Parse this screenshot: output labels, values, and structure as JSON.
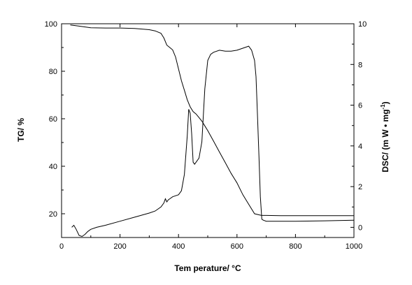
{
  "chart_data": {
    "type": "line",
    "title": "",
    "xlabel": "Tem perature/ °C",
    "ylabel_left": "TG/ %",
    "ylabel_right_main": "DSC/ (m W • mg",
    "ylabel_right_sup": "-1",
    "ylabel_right_close": ")",
    "xlim": [
      0,
      1000
    ],
    "ylim_left": [
      10,
      100
    ],
    "ylim_right": [
      -0.5,
      10
    ],
    "xticks": [
      "0",
      "200",
      "400",
      "600",
      "800",
      "1000"
    ],
    "yticks_left": [
      "20",
      "40",
      "60",
      "80",
      "100"
    ],
    "yticks_right": [
      "0",
      "2",
      "4",
      "6",
      "8",
      "10"
    ],
    "grid": false,
    "series": [
      {
        "axis": "left",
        "x": [
          30,
          60,
          100,
          150,
          200,
          250,
          300,
          320,
          340,
          350,
          360,
          370,
          380,
          390,
          400,
          410,
          420,
          430,
          440,
          450,
          460,
          470,
          480,
          490,
          500,
          520,
          540,
          560,
          580,
          600,
          620,
          640,
          660,
          680,
          685,
          700,
          750,
          800,
          850,
          900,
          950,
          1000
        ],
        "y": [
          99.5,
          99,
          98.3,
          98.2,
          98.2,
          98,
          97.5,
          97,
          96,
          94,
          91,
          90,
          89,
          86,
          81,
          76,
          72,
          68,
          65,
          63,
          62,
          60.5,
          59,
          57,
          55,
          50.5,
          46,
          41.5,
          37,
          33,
          28,
          24,
          20,
          19.4,
          19.3,
          19.3,
          19.2,
          19.2,
          19.2,
          19.2,
          19.2,
          19.2
        ]
      },
      {
        "axis": "right",
        "x": [
          35,
          42,
          50,
          60,
          70,
          80,
          90,
          100,
          120,
          150,
          200,
          250,
          300,
          320,
          340,
          350,
          355,
          360,
          365,
          370,
          380,
          400,
          410,
          420,
          430,
          435,
          440,
          445,
          450,
          455,
          460,
          470,
          480,
          490,
          500,
          510,
          520,
          540,
          560,
          580,
          600,
          620,
          640,
          650,
          660,
          665,
          670,
          675,
          680,
          685,
          690,
          700,
          800,
          900,
          1000
        ],
        "y": [
          0.0,
          0.1,
          -0.1,
          -0.4,
          -0.45,
          -0.35,
          -0.2,
          -0.1,
          0.0,
          0.1,
          0.3,
          0.5,
          0.7,
          0.8,
          1.0,
          1.2,
          1.4,
          1.25,
          1.35,
          1.4,
          1.5,
          1.6,
          1.8,
          2.6,
          4.5,
          5.8,
          5.6,
          4.6,
          3.2,
          3.1,
          3.2,
          3.4,
          4.2,
          6.8,
          8.2,
          8.5,
          8.6,
          8.7,
          8.65,
          8.65,
          8.7,
          8.8,
          8.9,
          8.7,
          8.2,
          7.4,
          5.5,
          3.5,
          1.5,
          0.4,
          0.35,
          0.3,
          0.3,
          0.32,
          0.35
        ]
      }
    ]
  }
}
